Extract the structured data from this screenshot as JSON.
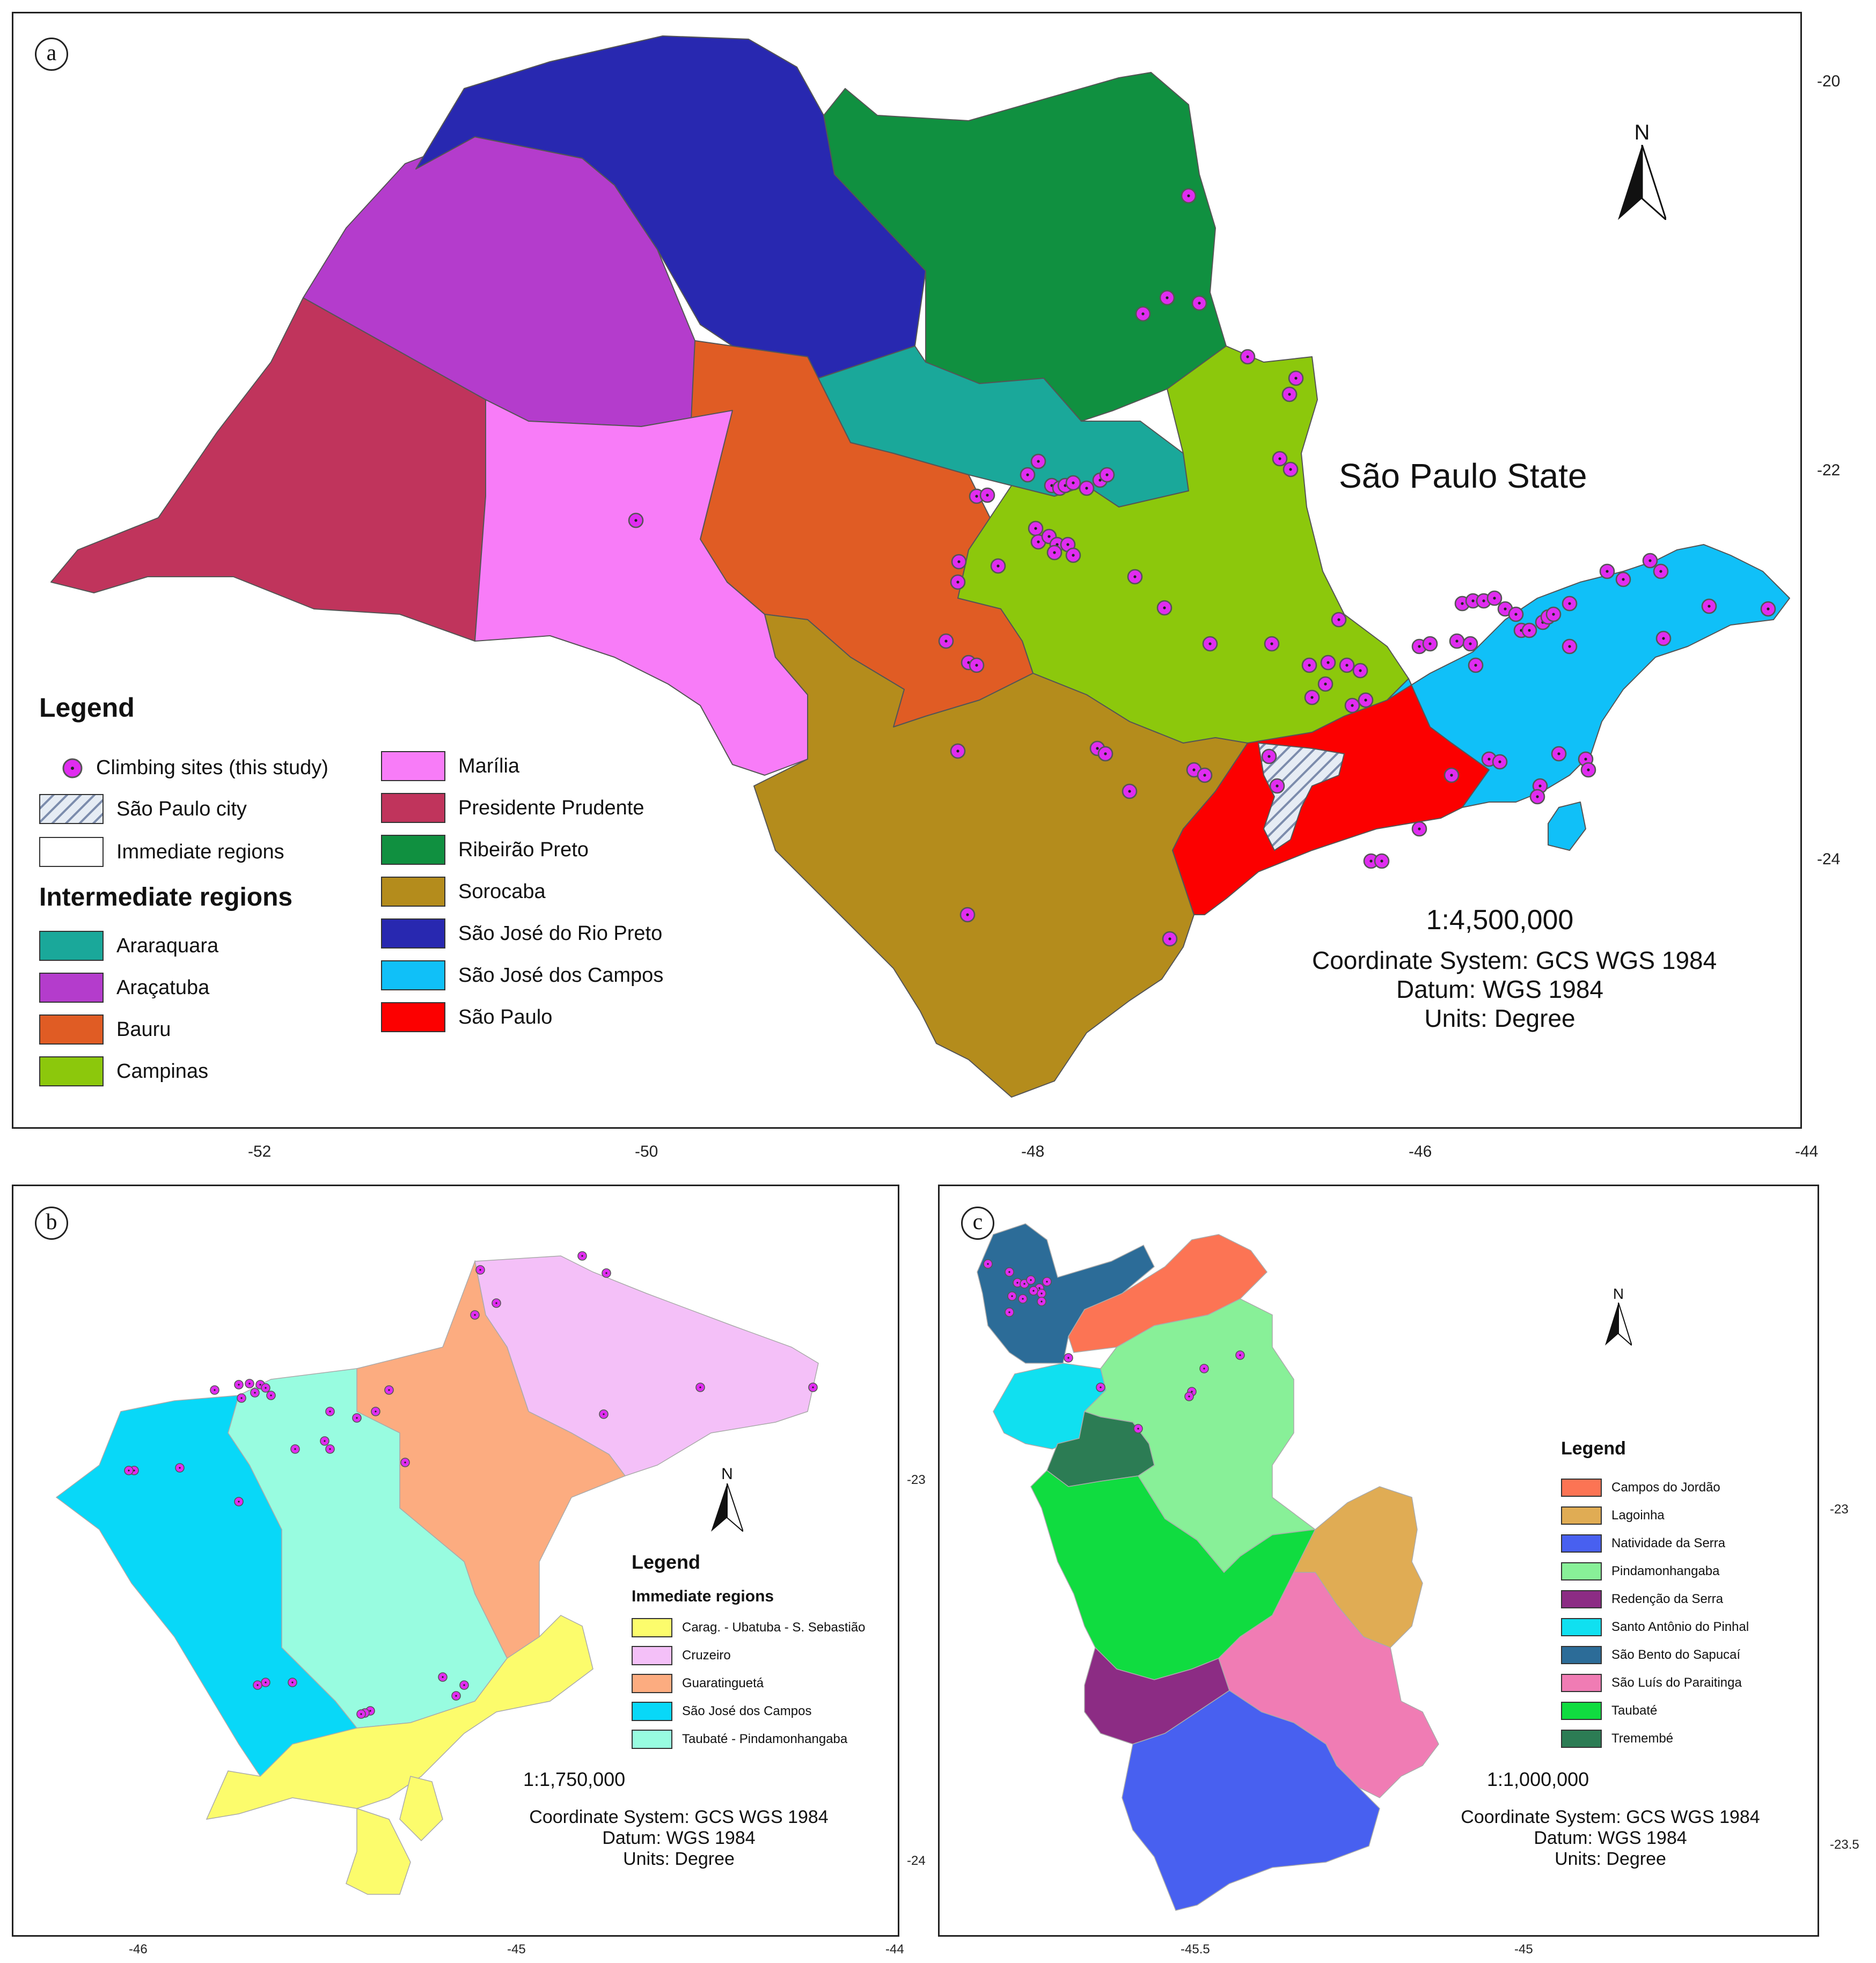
{
  "panel_a": {
    "label": "a",
    "state_name": "São Paulo State",
    "north_label": "N",
    "lon_ticks": [
      "-52",
      "-50",
      "-48",
      "-46",
      "-44"
    ],
    "lat_ticks": [
      "-20",
      "-22",
      "-24"
    ],
    "legend": {
      "title": "Legend",
      "sites_label": "Climbing sites (this study)",
      "city_label": "São Paulo city",
      "immediate_label": "Immediate regions",
      "intermediate_title": "Intermediate regions",
      "regions": [
        {
          "name": "Araraquara",
          "color": "#1aa89a"
        },
        {
          "name": "Araçatuba",
          "color": "#b43ccc"
        },
        {
          "name": "Bauru",
          "color": "#e05c24"
        },
        {
          "name": "Campinas",
          "color": "#8cc80c"
        },
        {
          "name": "Marília",
          "color": "#f87cf8"
        },
        {
          "name": "Presidente Prudente",
          "color": "#c0345c"
        },
        {
          "name": "Ribeirão Preto",
          "color": "#109040"
        },
        {
          "name": "Sorocaba",
          "color": "#b48c1c"
        },
        {
          "name": "São José do Rio Preto",
          "color": "#2828b0"
        },
        {
          "name": "São José dos Campos",
          "color": "#10c0f8"
        },
        {
          "name": "São Paulo",
          "color": "#fc0000"
        }
      ]
    },
    "scale": "1:4,500,000",
    "coord_system": "Coordinate System: GCS WGS 1984",
    "datum": "Datum: WGS 1984",
    "units": "Units: Degree"
  },
  "panel_b": {
    "label": "b",
    "north_label": "N",
    "lon_ticks": [
      "-46",
      "-45",
      "-44"
    ],
    "lat_ticks": [
      "-23",
      "-24"
    ],
    "legend": {
      "title": "Legend",
      "subtitle": "Immediate regions",
      "regions": [
        {
          "name": "Carag. - Ubatuba - S. Sebastião",
          "color": "#fcfc6c"
        },
        {
          "name": "Cruzeiro",
          "color": "#f4c0f8"
        },
        {
          "name": "Guaratinguetá",
          "color": "#fcac80"
        },
        {
          "name": "São José dos Campos",
          "color": "#08d8f8"
        },
        {
          "name": "Taubaté - Pindamonhangaba",
          "color": "#98fce0"
        }
      ]
    },
    "scale": "1:1,750,000",
    "coord_system": "Coordinate System: GCS WGS 1984",
    "datum": "Datum: WGS 1984",
    "units": "Units: Degree"
  },
  "panel_c": {
    "label": "c",
    "north_label": "N",
    "lon_ticks": [
      "-45.5",
      "-45"
    ],
    "lat_ticks": [
      "-23",
      "-23.5"
    ],
    "legend": {
      "title": "Legend",
      "regions": [
        {
          "name": "Campos do Jordão",
          "color": "#fc7454"
        },
        {
          "name": "Lagoinha",
          "color": "#e0ac54"
        },
        {
          "name": "Natividade da Serra",
          "color": "#4860f0"
        },
        {
          "name": "Pindamonhangaba",
          "color": "#88f098"
        },
        {
          "name": "Redenção da Serra",
          "color": "#8c2c84"
        },
        {
          "name": "Santo Antônio do Pinhal",
          "color": "#10e0f0"
        },
        {
          "name": "São Bento do Sapucaí",
          "color": "#2c6c98"
        },
        {
          "name": "São Luís do Paraitinga",
          "color": "#f07cb4"
        },
        {
          "name": "Taubaté",
          "color": "#10dc40"
        },
        {
          "name": "Tremembé",
          "color": "#2c7c54"
        }
      ]
    },
    "scale": "1:1,000,000",
    "coord_system": "Coordinate System: GCS WGS 1984",
    "datum": "Datum: WGS 1984",
    "units": "Units: Degree"
  }
}
